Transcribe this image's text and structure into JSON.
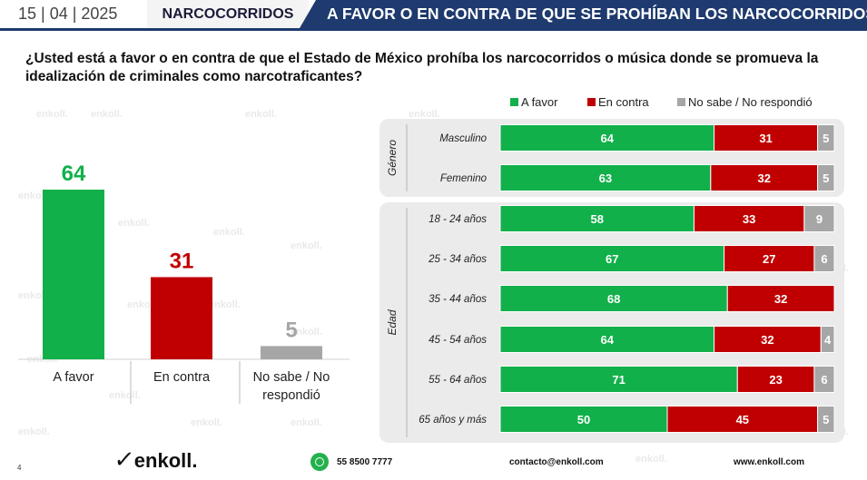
{
  "header": {
    "date": "15 | 04 | 2025",
    "section": "NARCOCORRIDOS",
    "title": "A FAVOR O EN CONTRA DE QUE SE PROHÍBAN LOS NARCOCORRIDOS"
  },
  "question": "¿Usted está a favor o en contra de que el Estado de México prohíba los narcocorridos o música donde se promueva la idealización de criminales como narcotraficantes?",
  "colors": {
    "favor": "#12b04a",
    "contra": "#c00000",
    "nosabe": "#a6a6a6",
    "banner": "#1e3a6e",
    "panel": "#ebebeb"
  },
  "chart_data": [
    {
      "type": "bar",
      "categories": [
        "A favor",
        "En contra",
        "No sabe / No respondió"
      ],
      "category_lines": [
        [
          "A favor"
        ],
        [
          "En contra"
        ],
        [
          "No sabe / No",
          "respondió"
        ]
      ],
      "values": [
        64,
        31,
        5
      ],
      "ylim": [
        0,
        70
      ]
    },
    {
      "type": "bar",
      "orientation": "horizontal",
      "stacked": true,
      "legend": [
        "A favor",
        "En contra",
        "No sabe / No respondió"
      ],
      "legend_position": "top-right",
      "xlim": [
        0,
        100
      ],
      "groups": [
        {
          "name": "Género",
          "rows": [
            {
              "label": "Masculino",
              "values": [
                64,
                31,
                5
              ]
            },
            {
              "label": "Femenino",
              "values": [
                63,
                32,
                5
              ]
            }
          ]
        },
        {
          "name": "Edad",
          "rows": [
            {
              "label": "18 - 24 años",
              "values": [
                58,
                33,
                9
              ]
            },
            {
              "label": "25 - 34 años",
              "values": [
                67,
                27,
                6
              ]
            },
            {
              "label": "35 - 44 años",
              "values": [
                68,
                32,
                0
              ]
            },
            {
              "label": "45 - 54 años",
              "values": [
                64,
                32,
                4
              ]
            },
            {
              "label": "55 - 64 años",
              "values": [
                71,
                23,
                6
              ]
            },
            {
              "label": "65  años y más",
              "values": [
                50,
                45,
                5
              ]
            }
          ]
        }
      ]
    }
  ],
  "footer": {
    "page": "4",
    "logo": "enkoll.",
    "phone": "55 8500 7777",
    "email": "contacto@enkoll.com",
    "web": "www.enkoll.com",
    "watermark": "enkoll."
  }
}
